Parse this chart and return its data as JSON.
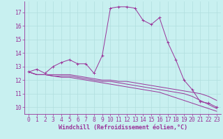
{
  "background_color": "#c8f0f0",
  "line_color": "#993399",
  "grid_color": "#b0dede",
  "xlabel": "Windchill (Refroidissement éolien,°C)",
  "xlabel_fontsize": 6.0,
  "tick_fontsize": 5.8,
  "xlim": [
    -0.5,
    23.5
  ],
  "ylim": [
    9.5,
    17.8
  ],
  "yticks": [
    10,
    11,
    12,
    13,
    14,
    15,
    16,
    17
  ],
  "xticks": [
    0,
    1,
    2,
    3,
    4,
    5,
    6,
    7,
    8,
    9,
    10,
    11,
    12,
    13,
    14,
    15,
    16,
    17,
    18,
    19,
    20,
    21,
    22,
    23
  ],
  "series": [
    {
      "x": [
        0,
        1,
        2,
        3,
        4,
        5,
        6,
        7,
        8,
        9,
        10,
        11,
        12,
        13,
        14,
        15,
        16,
        17,
        18,
        19,
        20,
        21,
        22,
        23
      ],
      "y": [
        12.6,
        12.8,
        12.5,
        13.0,
        13.3,
        13.5,
        13.2,
        13.2,
        12.5,
        13.8,
        17.3,
        17.4,
        17.4,
        17.3,
        16.4,
        16.1,
        16.6,
        14.8,
        13.5,
        12.0,
        11.3,
        10.4,
        10.3,
        10.0
      ],
      "has_markers": true
    },
    {
      "x": [
        0,
        1,
        2,
        3,
        4,
        5,
        6,
        7,
        8,
        9,
        10,
        11,
        12,
        13,
        14,
        15,
        16,
        17,
        18,
        19,
        20,
        21,
        22,
        23
      ],
      "y": [
        12.6,
        12.4,
        12.4,
        12.4,
        12.4,
        12.4,
        12.3,
        12.2,
        12.1,
        12.0,
        12.0,
        11.9,
        11.9,
        11.8,
        11.7,
        11.6,
        11.5,
        11.4,
        11.3,
        11.2,
        11.1,
        11.0,
        10.8,
        10.5
      ],
      "has_markers": false
    },
    {
      "x": [
        0,
        1,
        2,
        3,
        4,
        5,
        6,
        7,
        8,
        9,
        10,
        11,
        12,
        13,
        14,
        15,
        16,
        17,
        18,
        19,
        20,
        21,
        22,
        23
      ],
      "y": [
        12.6,
        12.4,
        12.4,
        12.3,
        12.3,
        12.3,
        12.2,
        12.1,
        12.0,
        11.9,
        11.9,
        11.8,
        11.7,
        11.6,
        11.5,
        11.4,
        11.3,
        11.2,
        11.1,
        11.0,
        10.8,
        10.5,
        10.2,
        9.9
      ],
      "has_markers": false
    },
    {
      "x": [
        0,
        1,
        2,
        3,
        4,
        5,
        6,
        7,
        8,
        9,
        10,
        11,
        12,
        13,
        14,
        15,
        16,
        17,
        18,
        19,
        20,
        21,
        22,
        23
      ],
      "y": [
        12.6,
        12.4,
        12.4,
        12.3,
        12.2,
        12.2,
        12.1,
        12.0,
        11.9,
        11.8,
        11.7,
        11.6,
        11.5,
        11.4,
        11.3,
        11.2,
        11.1,
        10.9,
        10.7,
        10.5,
        10.3,
        10.1,
        9.9,
        9.7
      ],
      "has_markers": false
    }
  ]
}
